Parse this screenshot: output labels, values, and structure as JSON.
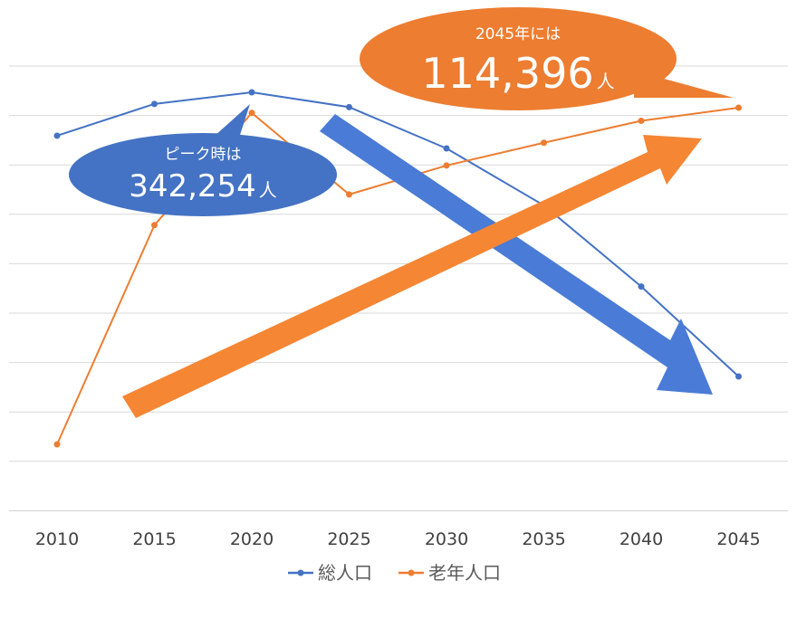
{
  "chart_data": {
    "type": "line",
    "x": [
      "2010",
      "2015",
      "2020",
      "2025",
      "2030",
      "2035",
      "2040",
      "2045"
    ],
    "series": [
      {
        "name": "総人口",
        "color": "#4472C4",
        "values": [
          324500,
          337500,
          342254,
          336200,
          319300,
          296000,
          262800,
          226000
        ]
      },
      {
        "name": "老年人口",
        "color": "#ED7D31",
        "values": [
          76000,
          101000,
          113800,
          104500,
          107800,
          110400,
          112900,
          114396
        ]
      }
    ],
    "legend_position": "bottom",
    "grid": true,
    "annotations": {
      "peak": {
        "line1": "ピーク時は",
        "value": "342,254",
        "unit": "人",
        "color": "#4472C4"
      },
      "elderly": {
        "line1": "2045年には",
        "value": "114,396",
        "unit": "人",
        "color": "#ED7D31"
      }
    },
    "trend_arrows": {
      "down_color": "#4A7BD6",
      "up_color": "#F58634"
    }
  }
}
